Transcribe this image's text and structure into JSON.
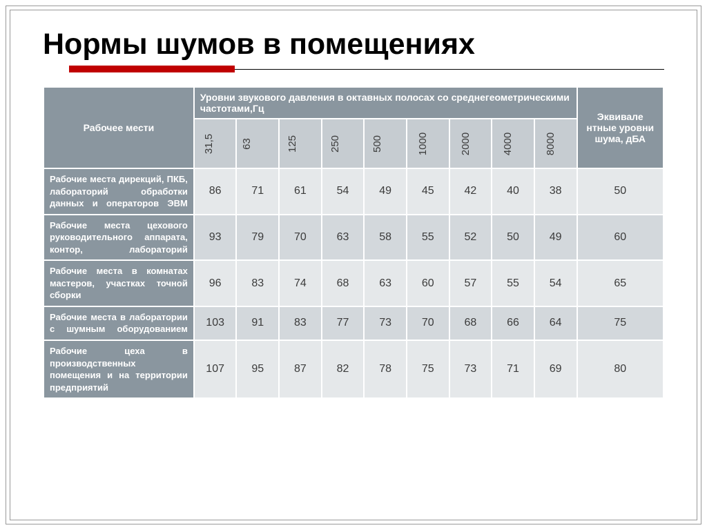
{
  "title": "Нормы шумов в помещениях",
  "header": {
    "workplace": "Рабочее мести",
    "pressure_levels": "Уровни звукового давления в октавных полосах со среднегеометрическими частотами,Гц",
    "equivalent": "Эквивале нтные уровни шума, дБА"
  },
  "frequencies": [
    "31,5",
    "63",
    "125",
    "250",
    "500",
    "1000",
    "2000",
    "4000",
    "8000"
  ],
  "rows": [
    {
      "label": "Рабочие места дирекций, ПКБ, лабораторий обработки данных и операторов ЭВМ",
      "vals": [
        "86",
        "71",
        "61",
        "54",
        "49",
        "45",
        "42",
        "40",
        "38"
      ],
      "eq": "50"
    },
    {
      "label": "Рабочие места цехового руководительного аппарата, контор, лабораторий",
      "vals": [
        "93",
        "79",
        "70",
        "63",
        "58",
        "55",
        "52",
        "50",
        "49"
      ],
      "eq": "60"
    },
    {
      "label": "Рабочие места в комнатах мастеров, участках точной сборки",
      "vals": [
        "96",
        "83",
        "74",
        "68",
        "63",
        "60",
        "57",
        "55",
        "54"
      ],
      "eq": "65"
    },
    {
      "label": "Рабочие места в лаборатории с шумным оборудованием",
      "vals": [
        "103",
        "91",
        "83",
        "77",
        "73",
        "70",
        "68",
        "66",
        "64"
      ],
      "eq": "75"
    },
    {
      "label": "Рабочие цеха в производственных помещения и на территории предприятий",
      "vals": [
        "107",
        "95",
        "87",
        "82",
        "78",
        "75",
        "73",
        "71",
        "69"
      ],
      "eq": "80"
    }
  ],
  "colors": {
    "accent": "#c00000",
    "header_bg": "#8a969f",
    "freq_bg": "#c6ccd1",
    "band_a": "#e5e8ea",
    "band_b": "#d3d8dc"
  }
}
